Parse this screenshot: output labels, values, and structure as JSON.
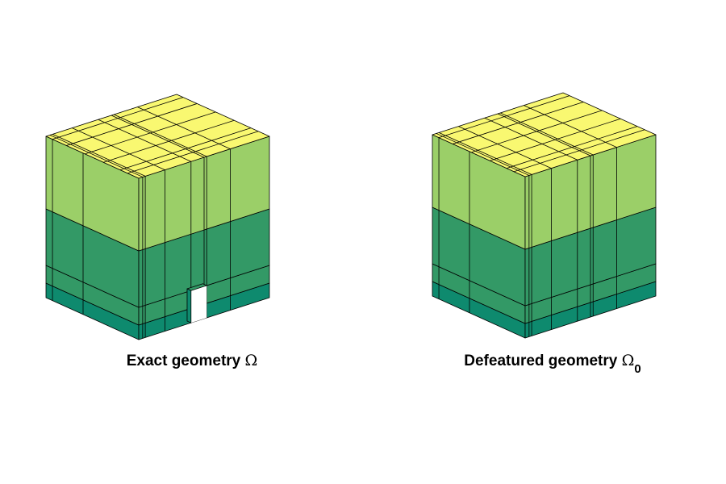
{
  "colors": {
    "yellow": "#f9f871",
    "light_green": "#9bcf68",
    "mid_green": "#339966",
    "teal": "#0e8a6e",
    "edge": "#000000"
  },
  "left": {
    "caption": "Exact geometry",
    "symbol": "Ω",
    "subscript": ""
  },
  "right": {
    "caption": "Defeatured geometry",
    "symbol": "Ω",
    "subscript": "0"
  }
}
